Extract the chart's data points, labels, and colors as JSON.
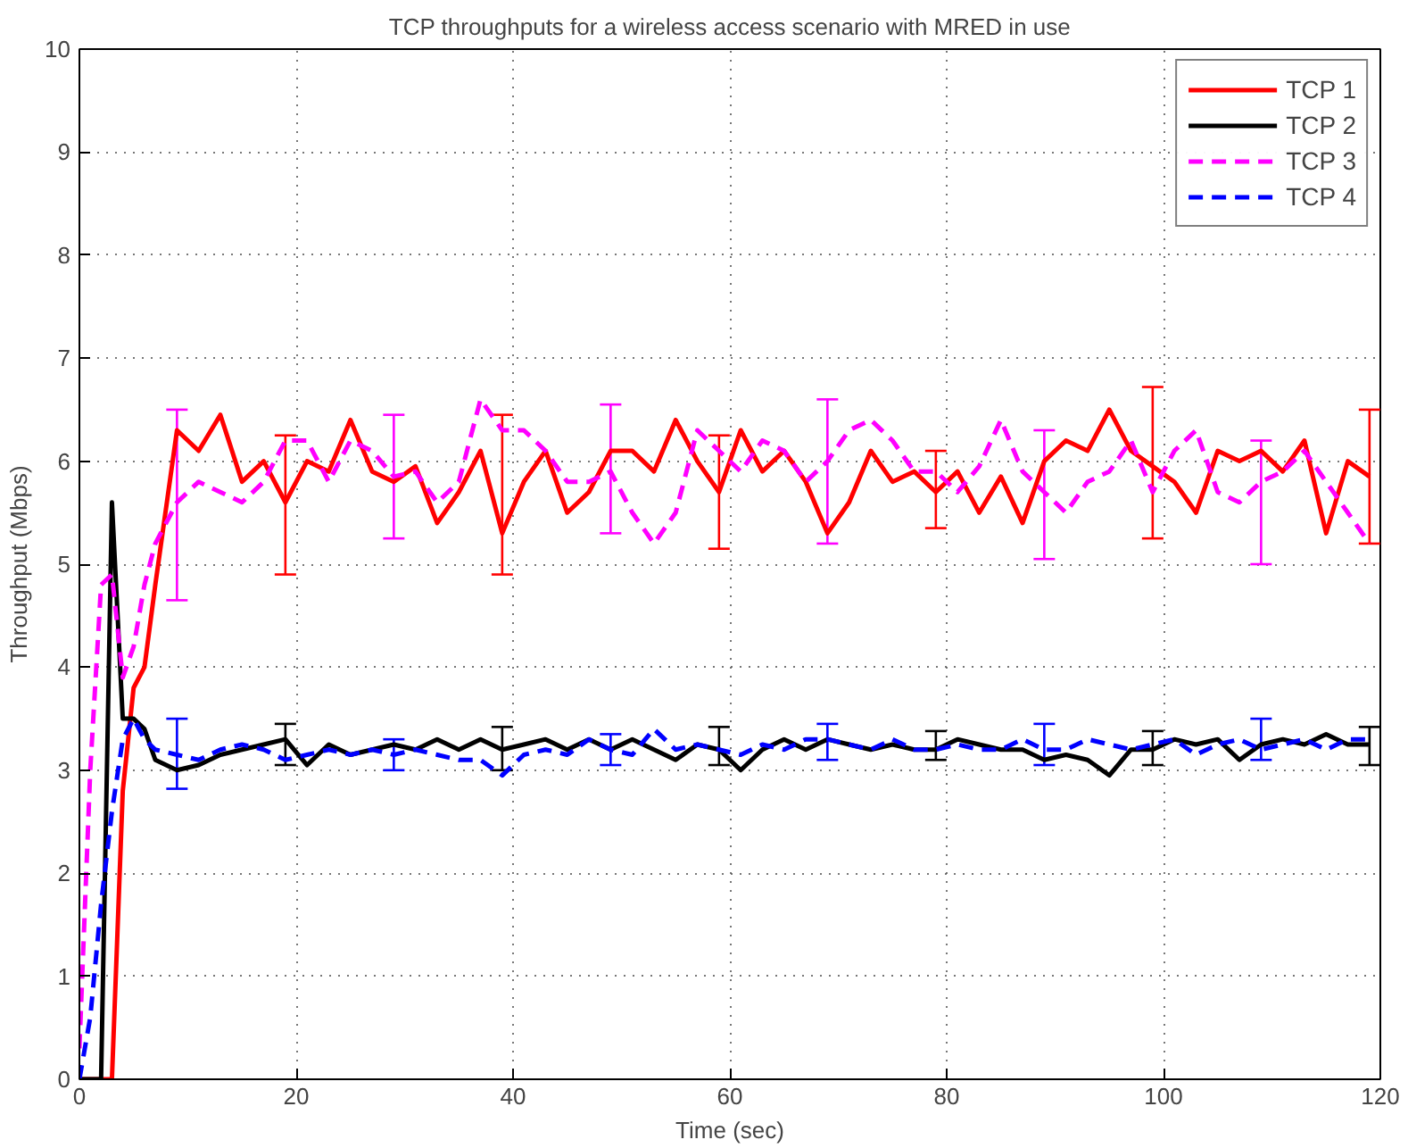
{
  "chart_data": {
    "type": "line",
    "title": "TCP throughputs for a wireless access scenario with MRED in use",
    "xlabel": "Time (sec)",
    "ylabel": "Throughput (Mbps)",
    "x": [
      0,
      1,
      2,
      3,
      4,
      5,
      6,
      7,
      9,
      11,
      13,
      15,
      17,
      19,
      21,
      23,
      25,
      27,
      29,
      31,
      33,
      35,
      37,
      39,
      41,
      43,
      45,
      47,
      49,
      51,
      53,
      55,
      57,
      59,
      61,
      63,
      65,
      67,
      69,
      71,
      73,
      75,
      77,
      79,
      81,
      83,
      85,
      87,
      89,
      91,
      93,
      95,
      97,
      99,
      101,
      103,
      105,
      107,
      109,
      111,
      113,
      115,
      117,
      119
    ],
    "series": [
      {
        "name": "TCP 1",
        "color": "#ff0000",
        "line_style": "solid",
        "values": [
          0,
          0,
          0,
          0,
          2.8,
          3.8,
          4.0,
          4.8,
          6.3,
          6.1,
          6.45,
          5.8,
          6.0,
          5.6,
          6.0,
          5.9,
          6.4,
          5.9,
          5.8,
          5.95,
          5.4,
          5.7,
          6.1,
          5.3,
          5.8,
          6.1,
          5.5,
          5.7,
          6.1,
          6.1,
          5.9,
          6.4,
          6.0,
          5.7,
          6.3,
          5.9,
          6.1,
          5.8,
          5.3,
          5.6,
          6.1,
          5.8,
          5.9,
          5.7,
          5.9,
          5.5,
          5.85,
          5.4,
          6.0,
          6.2,
          6.1,
          6.5,
          6.1,
          5.95,
          5.8,
          5.5,
          6.1,
          6.0,
          6.1,
          5.9,
          6.2,
          5.3,
          6.0,
          5.85
        ],
        "errors": [
          null,
          null,
          null,
          null,
          null,
          null,
          null,
          null,
          null,
          null,
          null,
          null,
          null,
          [
            4.9,
            6.25
          ],
          null,
          null,
          null,
          null,
          null,
          null,
          null,
          null,
          null,
          [
            4.9,
            6.45
          ],
          null,
          null,
          null,
          null,
          null,
          null,
          null,
          null,
          null,
          [
            5.15,
            6.25
          ],
          null,
          null,
          null,
          null,
          null,
          null,
          null,
          null,
          null,
          [
            5.35,
            6.1
          ],
          null,
          null,
          null,
          null,
          null,
          null,
          null,
          null,
          null,
          [
            5.25,
            6.72
          ],
          null,
          null,
          null,
          null,
          null,
          null,
          null,
          null,
          null,
          [
            5.2,
            6.5
          ]
        ]
      },
      {
        "name": "TCP 2",
        "color": "#000000",
        "line_style": "solid",
        "values": [
          0,
          0,
          0,
          5.6,
          3.5,
          3.5,
          3.4,
          3.1,
          3.0,
          3.05,
          3.15,
          3.2,
          3.25,
          3.3,
          3.05,
          3.25,
          3.15,
          3.2,
          3.25,
          3.2,
          3.3,
          3.2,
          3.3,
          3.2,
          3.25,
          3.3,
          3.2,
          3.3,
          3.2,
          3.3,
          3.2,
          3.1,
          3.25,
          3.2,
          3.0,
          3.2,
          3.3,
          3.2,
          3.3,
          3.25,
          3.2,
          3.25,
          3.2,
          3.2,
          3.3,
          3.25,
          3.2,
          3.2,
          3.1,
          3.15,
          3.1,
          2.95,
          3.2,
          3.2,
          3.3,
          3.25,
          3.3,
          3.1,
          3.25,
          3.3,
          3.25,
          3.35,
          3.25,
          3.25
        ],
        "errors": [
          null,
          null,
          null,
          null,
          null,
          null,
          null,
          null,
          null,
          null,
          null,
          null,
          null,
          [
            3.05,
            3.45
          ],
          null,
          null,
          null,
          null,
          null,
          null,
          null,
          null,
          null,
          [
            3.0,
            3.42
          ],
          null,
          null,
          null,
          null,
          null,
          null,
          null,
          null,
          null,
          [
            3.05,
            3.42
          ],
          null,
          null,
          null,
          null,
          null,
          null,
          null,
          null,
          null,
          [
            3.1,
            3.38
          ],
          null,
          null,
          null,
          null,
          null,
          null,
          null,
          null,
          null,
          [
            3.05,
            3.38
          ],
          null,
          null,
          null,
          null,
          null,
          null,
          null,
          null,
          null,
          [
            3.05,
            3.42
          ]
        ]
      },
      {
        "name": "TCP 3",
        "color": "#ff00ff",
        "line_style": "dashed",
        "values": [
          0.3,
          3.0,
          4.8,
          4.9,
          3.9,
          4.2,
          4.8,
          5.2,
          5.6,
          5.8,
          5.7,
          5.6,
          5.8,
          6.2,
          6.2,
          5.8,
          6.2,
          6.1,
          5.85,
          5.9,
          5.6,
          5.8,
          6.6,
          6.3,
          6.3,
          6.1,
          5.8,
          5.8,
          5.9,
          5.5,
          5.2,
          5.5,
          6.3,
          6.1,
          5.9,
          6.2,
          6.1,
          5.8,
          6.0,
          6.3,
          6.4,
          6.2,
          5.9,
          5.9,
          5.7,
          5.95,
          6.4,
          5.9,
          5.7,
          5.5,
          5.8,
          5.9,
          6.2,
          5.7,
          6.1,
          6.3,
          5.7,
          5.6,
          5.8,
          5.9,
          6.1,
          5.8,
          5.5,
          5.2
        ],
        "errors": [
          null,
          null,
          null,
          null,
          null,
          null,
          null,
          null,
          [
            4.65,
            6.5
          ],
          null,
          null,
          null,
          null,
          null,
          null,
          null,
          null,
          null,
          [
            5.25,
            6.45
          ],
          null,
          null,
          null,
          null,
          null,
          null,
          null,
          null,
          null,
          [
            5.3,
            6.55
          ],
          null,
          null,
          null,
          null,
          null,
          null,
          null,
          null,
          null,
          [
            5.2,
            6.6
          ],
          null,
          null,
          null,
          null,
          null,
          null,
          null,
          null,
          null,
          [
            5.05,
            6.3
          ],
          null,
          null,
          null,
          null,
          null,
          null,
          null,
          null,
          null,
          [
            5.0,
            6.2
          ],
          null,
          null,
          null,
          null,
          null
        ]
      },
      {
        "name": "TCP 4",
        "color": "#0000ff",
        "line_style": "dashed",
        "values": [
          0,
          0.6,
          1.7,
          2.6,
          3.3,
          3.5,
          3.3,
          3.2,
          3.15,
          3.1,
          3.2,
          3.25,
          3.2,
          3.1,
          3.15,
          3.2,
          3.15,
          3.2,
          3.15,
          3.2,
          3.15,
          3.1,
          3.1,
          2.95,
          3.15,
          3.2,
          3.15,
          3.3,
          3.2,
          3.15,
          3.4,
          3.2,
          3.25,
          3.2,
          3.15,
          3.25,
          3.2,
          3.3,
          3.3,
          3.25,
          3.2,
          3.3,
          3.2,
          3.2,
          3.25,
          3.2,
          3.2,
          3.3,
          3.2,
          3.2,
          3.3,
          3.25,
          3.2,
          3.25,
          3.3,
          3.15,
          3.25,
          3.3,
          3.2,
          3.25,
          3.3,
          3.2,
          3.3,
          3.3
        ],
        "errors": [
          null,
          null,
          null,
          null,
          null,
          null,
          null,
          null,
          [
            2.82,
            3.5
          ],
          null,
          null,
          null,
          null,
          null,
          null,
          null,
          null,
          null,
          [
            3.0,
            3.3
          ],
          null,
          null,
          null,
          null,
          null,
          null,
          null,
          null,
          null,
          [
            3.05,
            3.35
          ],
          null,
          null,
          null,
          null,
          null,
          null,
          null,
          null,
          null,
          [
            3.1,
            3.45
          ],
          null,
          null,
          null,
          null,
          null,
          null,
          null,
          null,
          null,
          [
            3.05,
            3.45
          ],
          null,
          null,
          null,
          null,
          null,
          null,
          null,
          null,
          null,
          [
            3.1,
            3.5
          ],
          null,
          null,
          null,
          null,
          null
        ]
      }
    ],
    "xlim": [
      0,
      120
    ],
    "ylim": [
      0,
      10
    ],
    "xticks": [
      0,
      20,
      40,
      60,
      80,
      100,
      120
    ],
    "yticks": [
      0,
      1,
      2,
      3,
      4,
      5,
      6,
      7,
      8,
      9,
      10
    ],
    "grid": true,
    "legend": "top right"
  }
}
